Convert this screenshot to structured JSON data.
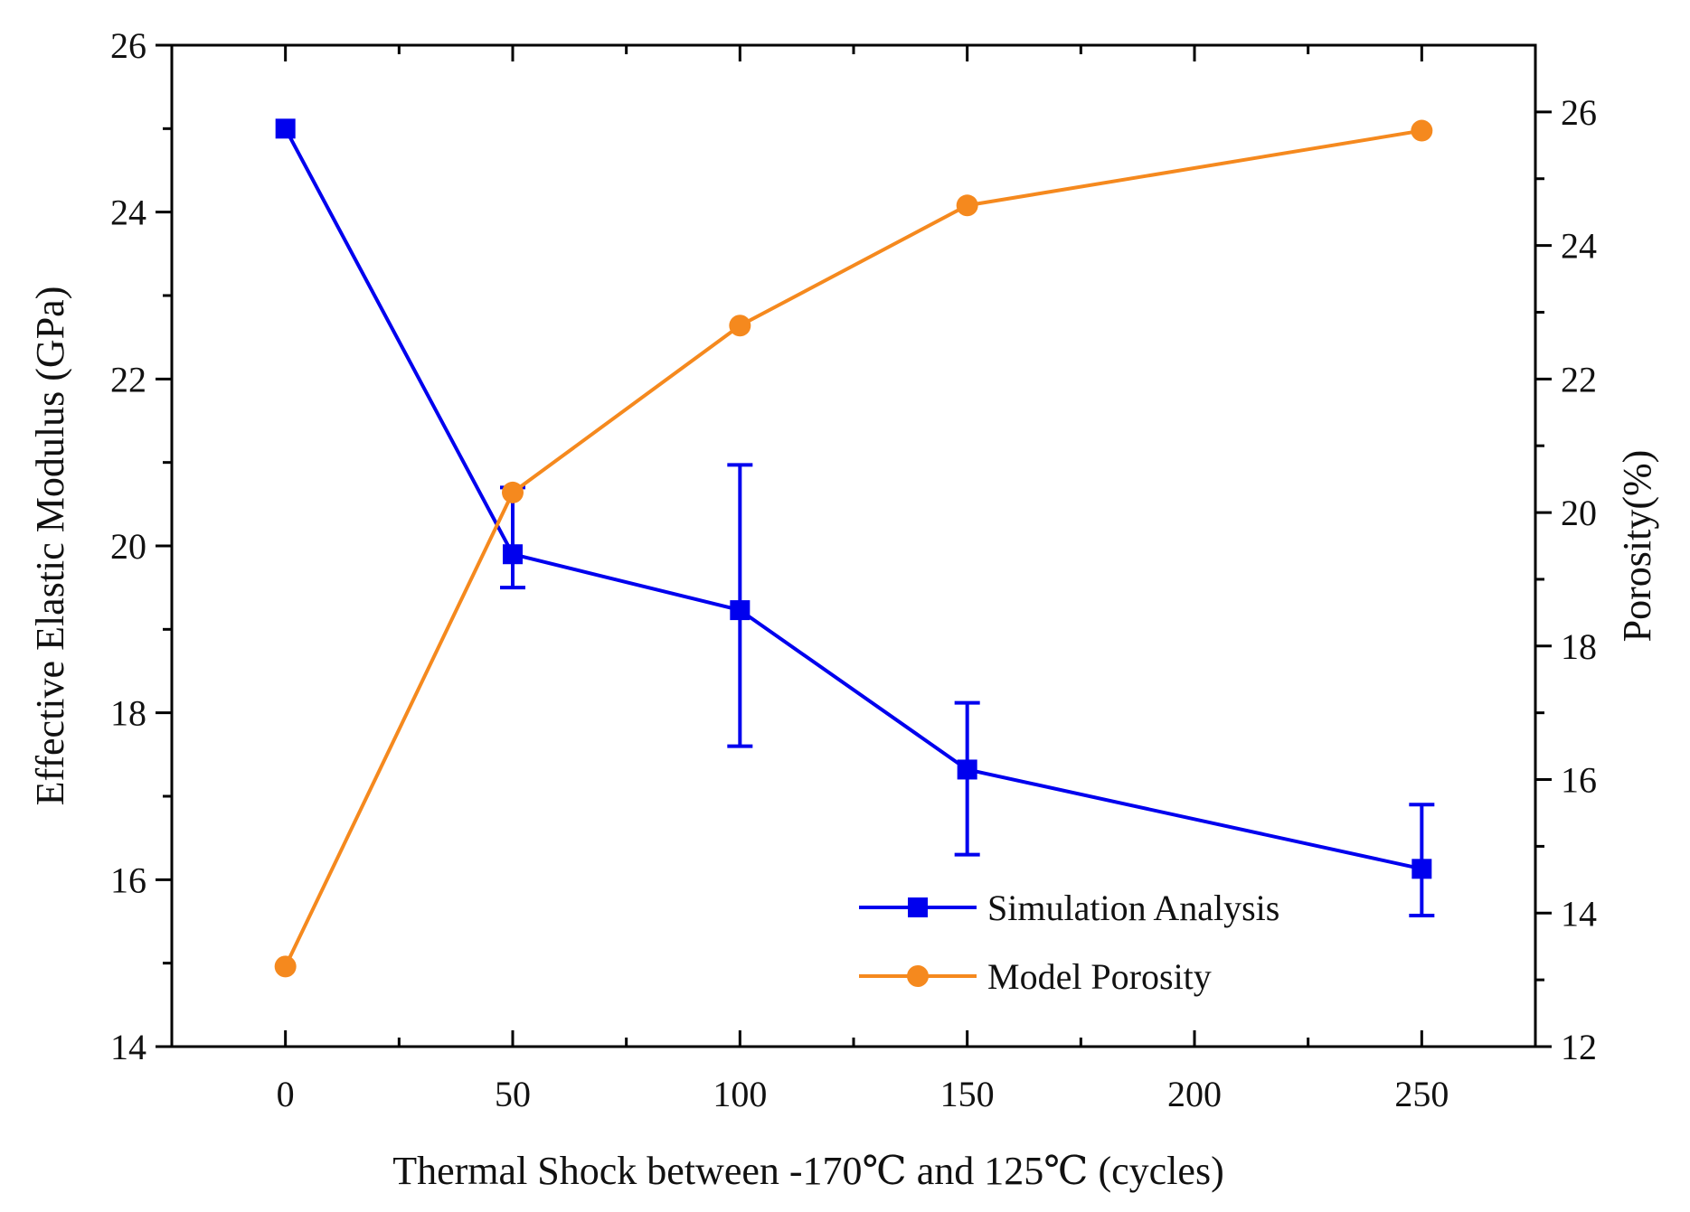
{
  "chart_data": {
    "type": "line",
    "title": "",
    "xlabel": "Thermal Shock between -170℃ and 125℃ (cycles)",
    "ylabel": "Effective Elastic Modulus (GPa)",
    "y2label": "Porosity(%)",
    "xlim": [
      -25,
      275
    ],
    "ylim": [
      14,
      26
    ],
    "y2lim": [
      12,
      27
    ],
    "x_ticks": [
      0,
      50,
      100,
      150,
      200,
      250
    ],
    "x_tick_labels": [
      "0",
      "50",
      "100",
      "150",
      "200",
      "250"
    ],
    "y_ticks": [
      14,
      16,
      18,
      20,
      22,
      24,
      26
    ],
    "y_tick_labels": [
      "14",
      "16",
      "18",
      "20",
      "22",
      "24",
      "26"
    ],
    "y2_ticks": [
      12,
      14,
      16,
      18,
      20,
      22,
      24,
      26
    ],
    "y2_tick_labels": [
      "12",
      "14",
      "16",
      "18",
      "20",
      "22",
      "24",
      "26"
    ],
    "grid": false,
    "legend_position": "bottom-right",
    "series": [
      {
        "name": "Simulation Analysis",
        "axis": "left",
        "marker": "square",
        "color": "#0000ee",
        "x": [
          0,
          50,
          100,
          150,
          250
        ],
        "values": [
          25.0,
          19.9,
          19.23,
          17.32,
          16.13
        ],
        "error_low": [
          null,
          19.5,
          17.6,
          16.3,
          15.57
        ],
        "error_high": [
          null,
          20.7,
          20.97,
          18.12,
          16.9
        ]
      },
      {
        "name": "Model Porosity",
        "axis": "right",
        "marker": "circle",
        "color": "#f5891e",
        "x": [
          0,
          50,
          100,
          150,
          250
        ],
        "values": [
          13.2,
          20.3,
          22.8,
          24.6,
          25.72
        ]
      }
    ]
  }
}
